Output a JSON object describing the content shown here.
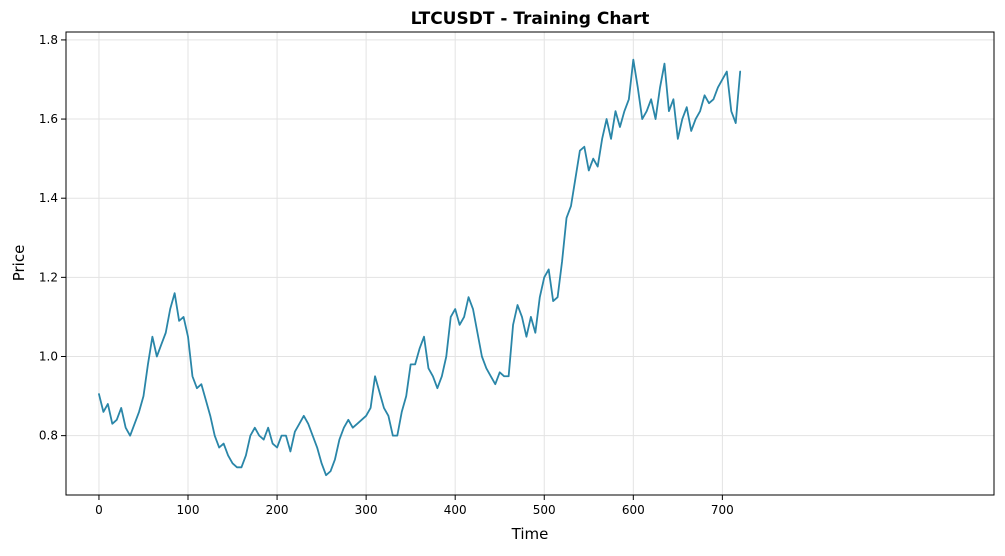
{
  "colors": {
    "line": "#2a86a8",
    "grid": "#e3e3e3",
    "axis": "#000000"
  },
  "chart_data": {
    "type": "line",
    "title": "LTCUSDT - Training Chart",
    "xlabel": "Time",
    "ylabel": "Price",
    "xlim": [
      -37,
      1005
    ],
    "ylim": [
      0.65,
      1.82
    ],
    "xticks": [
      0,
      100,
      200,
      300,
      400,
      500,
      600,
      700
    ],
    "yticks": [
      0.8,
      1.0,
      1.2,
      1.4,
      1.6,
      1.8
    ],
    "ytick_labels": [
      "0.8",
      "1.0",
      "1.2",
      "1.4",
      "1.6",
      "1.8"
    ],
    "grid": true,
    "legend": "none",
    "series": [
      {
        "x": [
          0,
          5,
          10,
          15,
          20,
          25,
          30,
          35,
          40,
          45,
          50,
          55,
          60,
          65,
          70,
          75,
          80,
          85,
          90,
          95,
          100,
          105,
          110,
          115,
          120,
          125,
          130,
          135,
          140,
          145,
          150,
          155,
          160,
          165,
          170,
          175,
          180,
          185,
          190,
          195,
          200,
          205,
          210,
          215,
          220,
          225,
          230,
          235,
          240,
          245,
          250,
          255,
          260,
          265,
          270,
          275,
          280,
          285,
          290,
          295,
          300,
          305,
          310,
          315,
          320,
          325,
          330,
          335,
          340,
          345,
          350,
          355,
          360,
          365,
          370,
          375,
          380,
          385,
          390,
          395,
          400,
          405,
          410,
          415,
          420,
          425,
          430,
          435,
          440,
          445,
          450,
          455,
          460,
          465,
          470,
          475,
          480,
          485,
          490,
          495,
          500,
          505,
          510,
          515,
          520,
          525,
          530,
          535,
          540,
          545,
          550,
          555,
          560,
          565,
          570,
          575,
          580,
          585,
          590,
          595,
          600,
          605,
          610,
          615,
          620,
          625,
          630,
          635,
          640,
          645,
          650,
          655,
          660,
          665,
          670,
          675,
          680,
          685,
          690,
          695,
          700,
          705,
          710,
          715,
          720
        ],
        "values": [
          0.905,
          0.86,
          0.88,
          0.83,
          0.84,
          0.87,
          0.82,
          0.8,
          0.83,
          0.86,
          0.9,
          0.98,
          1.05,
          1.0,
          1.03,
          1.06,
          1.12,
          1.16,
          1.09,
          1.1,
          1.05,
          0.95,
          0.92,
          0.93,
          0.89,
          0.85,
          0.8,
          0.77,
          0.78,
          0.75,
          0.73,
          0.72,
          0.72,
          0.75,
          0.8,
          0.82,
          0.8,
          0.79,
          0.82,
          0.78,
          0.77,
          0.8,
          0.8,
          0.76,
          0.81,
          0.83,
          0.85,
          0.83,
          0.8,
          0.77,
          0.73,
          0.7,
          0.71,
          0.74,
          0.79,
          0.82,
          0.84,
          0.82,
          0.83,
          0.84,
          0.85,
          0.87,
          0.95,
          0.91,
          0.87,
          0.85,
          0.8,
          0.8,
          0.86,
          0.9,
          0.98,
          0.98,
          1.02,
          1.05,
          0.97,
          0.95,
          0.92,
          0.95,
          1.0,
          1.1,
          1.12,
          1.08,
          1.1,
          1.15,
          1.12,
          1.06,
          1.0,
          0.97,
          0.95,
          0.93,
          0.96,
          0.95,
          0.95,
          1.08,
          1.13,
          1.1,
          1.05,
          1.1,
          1.06,
          1.15,
          1.2,
          1.22,
          1.14,
          1.15,
          1.24,
          1.35,
          1.38,
          1.45,
          1.52,
          1.53,
          1.47,
          1.5,
          1.48,
          1.55,
          1.6,
          1.55,
          1.62,
          1.58,
          1.62,
          1.65,
          1.75,
          1.68,
          1.6,
          1.62,
          1.65,
          1.6,
          1.68,
          1.74,
          1.62,
          1.65,
          1.55,
          1.6,
          1.63,
          1.57,
          1.6,
          1.62,
          1.66,
          1.64,
          1.65,
          1.68,
          1.7,
          1.72,
          1.62,
          1.59,
          1.72
        ]
      }
    ]
  }
}
